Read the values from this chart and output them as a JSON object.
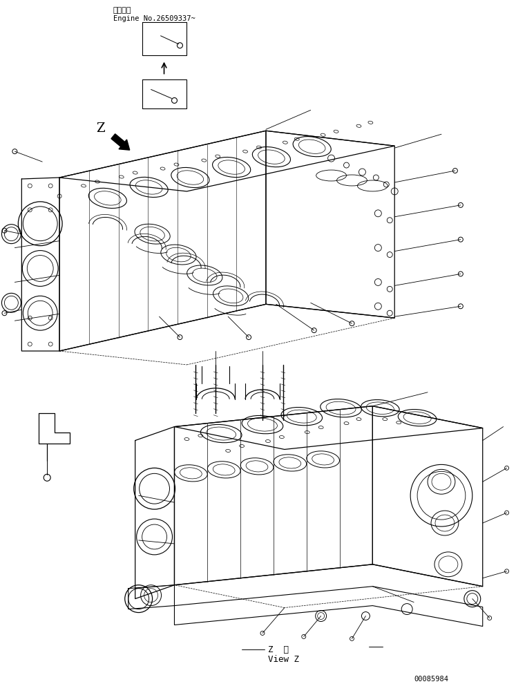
{
  "title_line1": "適用号機",
  "title_line2": "Engine No.26509337~",
  "view_label1": "Z  視",
  "view_label2": "View Z",
  "doc_number": "00085984",
  "bg_color": "#ffffff",
  "line_color": "#000000",
  "fig_width": 7.47,
  "fig_height": 9.9,
  "dpi": 100
}
